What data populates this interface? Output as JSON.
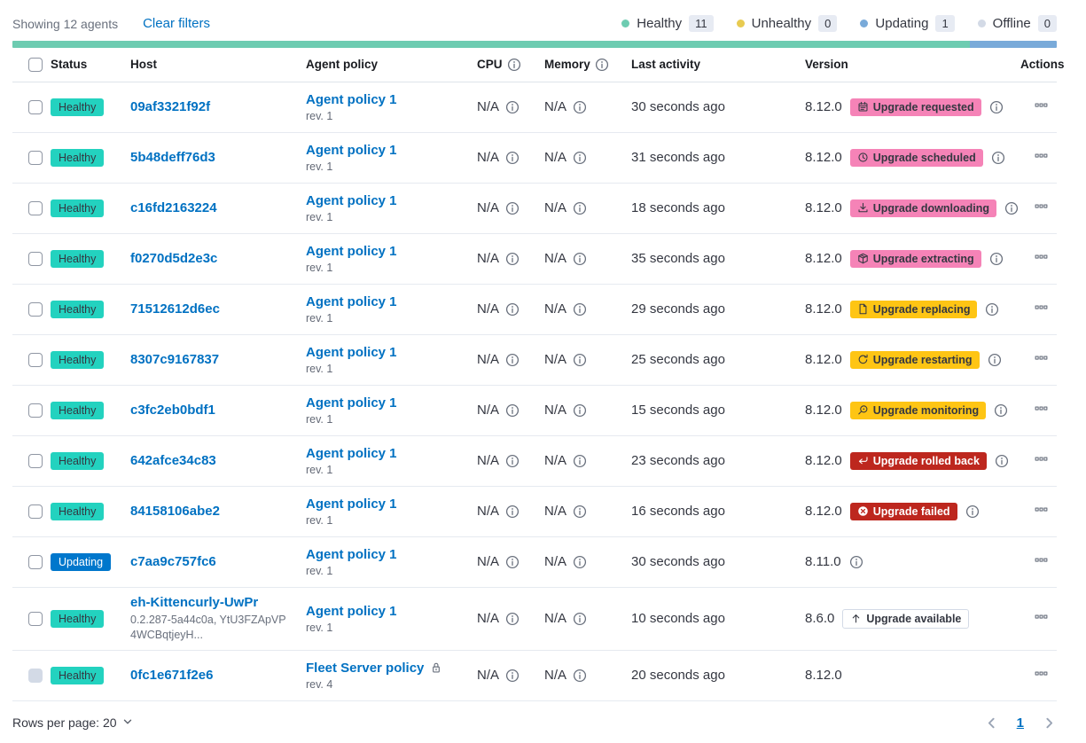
{
  "toolbar": {
    "showing_text": "Showing 12 agents",
    "clear_filters_label": "Clear filters",
    "legend": [
      {
        "label": "Healthy",
        "count": "11",
        "dot_color": "#6dccb1"
      },
      {
        "label": "Unhealthy",
        "count": "0",
        "dot_color": "#e8cb51"
      },
      {
        "label": "Updating",
        "count": "1",
        "dot_color": "#79aad9"
      },
      {
        "label": "Offline",
        "count": "0",
        "dot_color": "#d3dae6"
      }
    ]
  },
  "health_bar": {
    "segments": [
      {
        "status": "healthy",
        "color": "#6dccb1",
        "fraction": 0.9167
      },
      {
        "status": "updating",
        "color": "#79aad9",
        "fraction": 0.0833
      }
    ]
  },
  "status_colors": {
    "healthy": {
      "bg": "#23d2bf",
      "fg": "#343741"
    },
    "updating": {
      "bg": "#0077cc",
      "fg": "#ffffff"
    }
  },
  "upgrade_badge_colors": {
    "pink": {
      "bg": "#f583b7",
      "fg": "#343741"
    },
    "yellow": {
      "bg": "#fec514",
      "fg": "#343741"
    },
    "red": {
      "bg": "#bd271e",
      "fg": "#ffffff"
    },
    "outline": {
      "bg": "#ffffff",
      "fg": "#343741",
      "border": "#d3dae6"
    }
  },
  "table": {
    "columns": [
      {
        "label": "Status"
      },
      {
        "label": "Host"
      },
      {
        "label": "Agent policy"
      },
      {
        "label": "CPU",
        "info": true
      },
      {
        "label": "Memory",
        "info": true
      },
      {
        "label": "Last activity"
      },
      {
        "label": "Version"
      },
      {
        "label": "Actions",
        "align": "right"
      }
    ],
    "rows": [
      {
        "status": {
          "label": "Healthy",
          "type": "healthy"
        },
        "host": "09af3321f92f",
        "policy": {
          "name": "Agent policy 1",
          "rev": "rev. 1"
        },
        "cpu": "N/A",
        "memory": "N/A",
        "last_activity": "30 seconds ago",
        "version": "8.12.0",
        "upgrade": {
          "label": "Upgrade requested",
          "icon": "calendar-icon",
          "style": "pink"
        },
        "version_info": true
      },
      {
        "status": {
          "label": "Healthy",
          "type": "healthy"
        },
        "host": "5b48deff76d3",
        "policy": {
          "name": "Agent policy 1",
          "rev": "rev. 1"
        },
        "cpu": "N/A",
        "memory": "N/A",
        "last_activity": "31 seconds ago",
        "version": "8.12.0",
        "upgrade": {
          "label": "Upgrade scheduled",
          "icon": "clock-icon",
          "style": "pink"
        },
        "version_info": true
      },
      {
        "status": {
          "label": "Healthy",
          "type": "healthy"
        },
        "host": "c16fd2163224",
        "policy": {
          "name": "Agent policy 1",
          "rev": "rev. 1"
        },
        "cpu": "N/A",
        "memory": "N/A",
        "last_activity": "18 seconds ago",
        "version": "8.12.0",
        "upgrade": {
          "label": "Upgrade downloading",
          "icon": "download-icon",
          "style": "pink"
        },
        "version_info": true
      },
      {
        "status": {
          "label": "Healthy",
          "type": "healthy"
        },
        "host": "f0270d5d2e3c",
        "policy": {
          "name": "Agent policy 1",
          "rev": "rev. 1"
        },
        "cpu": "N/A",
        "memory": "N/A",
        "last_activity": "35 seconds ago",
        "version": "8.12.0",
        "upgrade": {
          "label": "Upgrade extracting",
          "icon": "package-icon",
          "style": "pink"
        },
        "version_info": true
      },
      {
        "status": {
          "label": "Healthy",
          "type": "healthy"
        },
        "host": "71512612d6ec",
        "policy": {
          "name": "Agent policy 1",
          "rev": "rev. 1"
        },
        "cpu": "N/A",
        "memory": "N/A",
        "last_activity": "29 seconds ago",
        "version": "8.12.0",
        "upgrade": {
          "label": "Upgrade replacing",
          "icon": "document-icon",
          "style": "yellow"
        },
        "version_info": true
      },
      {
        "status": {
          "label": "Healthy",
          "type": "healthy"
        },
        "host": "8307c9167837",
        "policy": {
          "name": "Agent policy 1",
          "rev": "rev. 1"
        },
        "cpu": "N/A",
        "memory": "N/A",
        "last_activity": "25 seconds ago",
        "version": "8.12.0",
        "upgrade": {
          "label": "Upgrade restarting",
          "icon": "refresh-icon",
          "style": "yellow"
        },
        "version_info": true
      },
      {
        "status": {
          "label": "Healthy",
          "type": "healthy"
        },
        "host": "c3fc2eb0bdf1",
        "policy": {
          "name": "Agent policy 1",
          "rev": "rev. 1"
        },
        "cpu": "N/A",
        "memory": "N/A",
        "last_activity": "15 seconds ago",
        "version": "8.12.0",
        "upgrade": {
          "label": "Upgrade monitoring",
          "icon": "inspect-icon",
          "style": "yellow"
        },
        "version_info": true
      },
      {
        "status": {
          "label": "Healthy",
          "type": "healthy"
        },
        "host": "642afce34c83",
        "policy": {
          "name": "Agent policy 1",
          "rev": "rev. 1"
        },
        "cpu": "N/A",
        "memory": "N/A",
        "last_activity": "23 seconds ago",
        "version": "8.12.0",
        "upgrade": {
          "label": "Upgrade rolled back",
          "icon": "return-arrow-icon",
          "style": "red"
        },
        "version_info": true
      },
      {
        "status": {
          "label": "Healthy",
          "type": "healthy"
        },
        "host": "84158106abe2",
        "policy": {
          "name": "Agent policy 1",
          "rev": "rev. 1"
        },
        "cpu": "N/A",
        "memory": "N/A",
        "last_activity": "16 seconds ago",
        "version": "8.12.0",
        "upgrade": {
          "label": "Upgrade failed",
          "icon": "error-icon",
          "style": "red"
        },
        "version_info": true
      },
      {
        "status": {
          "label": "Updating",
          "type": "updating"
        },
        "host": "c7aa9c757fc6",
        "policy": {
          "name": "Agent policy 1",
          "rev": "rev. 1"
        },
        "cpu": "N/A",
        "memory": "N/A",
        "last_activity": "30 seconds ago",
        "version": "8.11.0",
        "upgrade": null,
        "version_info": true
      },
      {
        "status": {
          "label": "Healthy",
          "type": "healthy"
        },
        "host": "eh-Kittencurly-UwPr",
        "host_sub": "0.2.287-5a44c0a, YtU3FZApVP4WCBqtjeyH...",
        "policy": {
          "name": "Agent policy 1",
          "rev": "rev. 1"
        },
        "cpu": "N/A",
        "memory": "N/A",
        "last_activity": "10 seconds ago",
        "version": "8.6.0",
        "upgrade": {
          "label": "Upgrade available",
          "icon": "arrow-up-icon",
          "style": "outline"
        },
        "version_info": false,
        "tall": true
      },
      {
        "status": {
          "label": "Healthy",
          "type": "healthy"
        },
        "host": "0fc1e671f2e6",
        "policy": {
          "name": "Fleet Server policy",
          "rev": "rev. 4",
          "locked": true
        },
        "cpu": "N/A",
        "memory": "N/A",
        "last_activity": "20 seconds ago",
        "version": "8.12.0",
        "upgrade": null,
        "version_info": false,
        "checkbox_disabled": true
      }
    ]
  },
  "footer": {
    "rows_per_page_label": "Rows per page: 20",
    "pagination": {
      "current_page": "1"
    }
  }
}
